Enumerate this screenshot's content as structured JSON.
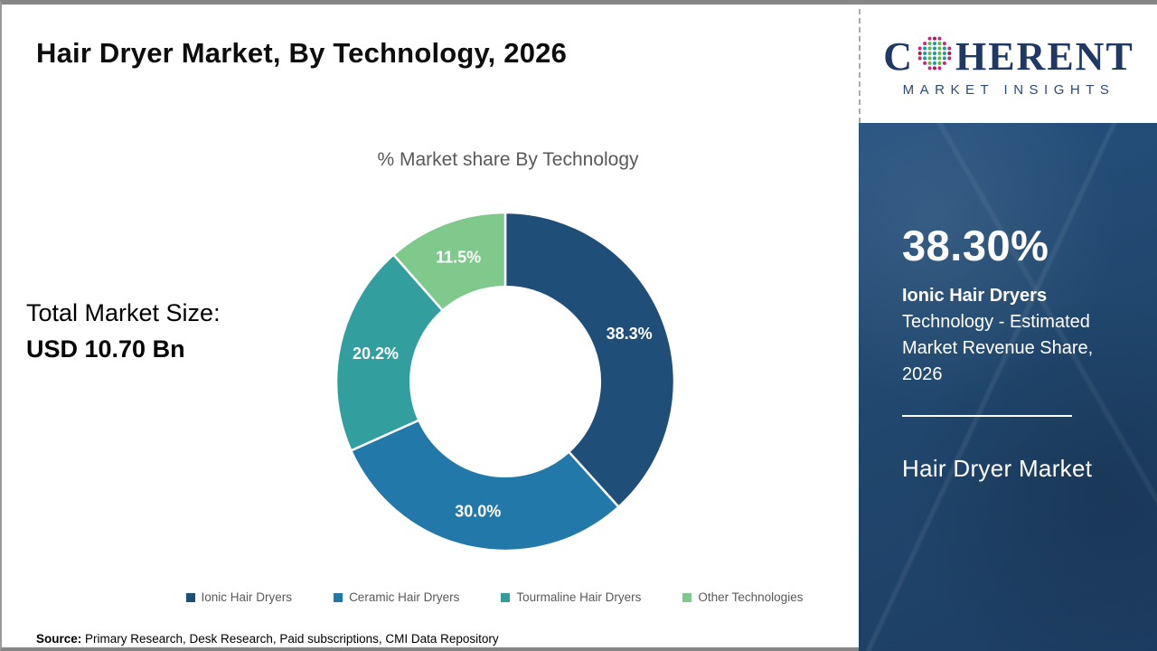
{
  "header": {
    "title": "Hair Dryer Market, By Technology, 2026"
  },
  "logo": {
    "brand_first_letter": "C",
    "brand_rest": "HERENT",
    "tagline": "MARKET INSIGHTS",
    "brand_color": "#1f3864",
    "globe_dot_colors": {
      "inner_teal": "#1b9aaa",
      "inner_green": "#5cb848",
      "outer_pink": "#c9267e",
      "outer_crimson": "#a51d4d"
    }
  },
  "left_panel": {
    "label": "Total Market Size:",
    "value": "USD 10.70 Bn"
  },
  "chart_data": {
    "type": "pie",
    "subtype": "donut",
    "title": "% Market share By Technology",
    "categories": [
      "Ionic Hair Dryers",
      "Ceramic Hair Dryers",
      "Tourmaline Hair Dryers",
      "Other Technologies"
    ],
    "values": [
      38.3,
      30.0,
      20.2,
      11.5
    ],
    "labels": [
      "38.3%",
      "30.0%",
      "20.2%",
      "11.5%"
    ],
    "colors": [
      "#1f4e79",
      "#2278a8",
      "#339e9e",
      "#7fc98d"
    ],
    "start_angle_deg": 0,
    "direction": "clockwise",
    "inner_radius_ratio": 0.56,
    "legend_position": "bottom",
    "separator_color": "#ffffff"
  },
  "sidebar": {
    "headline_value": "38.30%",
    "headline_label": "Ionic Hair Dryers",
    "headline_desc": "Technology - Estimated Market Revenue Share, 2026",
    "market_name": "Hair Dryer Market",
    "background_color": "#21486f"
  },
  "footer": {
    "source_label": "Source:",
    "source_text": " Primary Research, Desk Research, Paid subscriptions, CMI Data Repository"
  }
}
